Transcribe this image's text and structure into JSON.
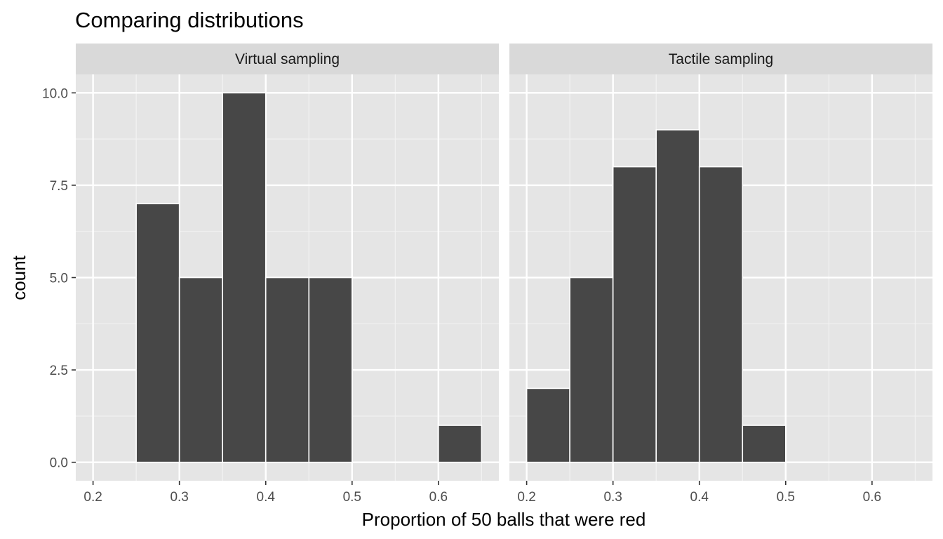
{
  "chart_data": {
    "type": "bar",
    "title": "Comparing distributions",
    "xlabel": "Proportion of 50 balls that were red",
    "ylabel": "count",
    "xlim": [
      0.18,
      0.67
    ],
    "ylim": [
      -0.5,
      10.5
    ],
    "x_ticks": [
      0.2,
      0.3,
      0.4,
      0.5,
      0.6
    ],
    "x_tick_labels": [
      "0.2",
      "0.3",
      "0.4",
      "0.5",
      "0.6"
    ],
    "y_ticks": [
      0,
      2.5,
      5,
      7.5,
      10
    ],
    "y_tick_labels": [
      "0.0",
      "2.5",
      "5.0",
      "7.5",
      "10.0"
    ],
    "grid": true,
    "bin_width": 0.05,
    "panels": [
      {
        "strip_label": "Virtual sampling",
        "bins": [
          {
            "x0": 0.25,
            "x1": 0.3,
            "count": 7
          },
          {
            "x0": 0.3,
            "x1": 0.35,
            "count": 5
          },
          {
            "x0": 0.35,
            "x1": 0.4,
            "count": 10
          },
          {
            "x0": 0.4,
            "x1": 0.45,
            "count": 5
          },
          {
            "x0": 0.45,
            "x1": 0.5,
            "count": 5
          },
          {
            "x0": 0.6,
            "x1": 0.65,
            "count": 1
          }
        ]
      },
      {
        "strip_label": "Tactile sampling",
        "bins": [
          {
            "x0": 0.2,
            "x1": 0.25,
            "count": 2
          },
          {
            "x0": 0.25,
            "x1": 0.3,
            "count": 5
          },
          {
            "x0": 0.3,
            "x1": 0.35,
            "count": 8
          },
          {
            "x0": 0.35,
            "x1": 0.4,
            "count": 9
          },
          {
            "x0": 0.4,
            "x1": 0.45,
            "count": 8
          },
          {
            "x0": 0.45,
            "x1": 0.5,
            "count": 1
          }
        ]
      }
    ],
    "colors": {
      "bar_fill": "#474747",
      "bar_stroke": "#ffffff",
      "panel_background": "#e5e5e5",
      "grid_major": "#ffffff",
      "grid_minor": "#f2f2f2",
      "strip_background": "#d9d9d9",
      "tick_mark": "#333333"
    }
  }
}
